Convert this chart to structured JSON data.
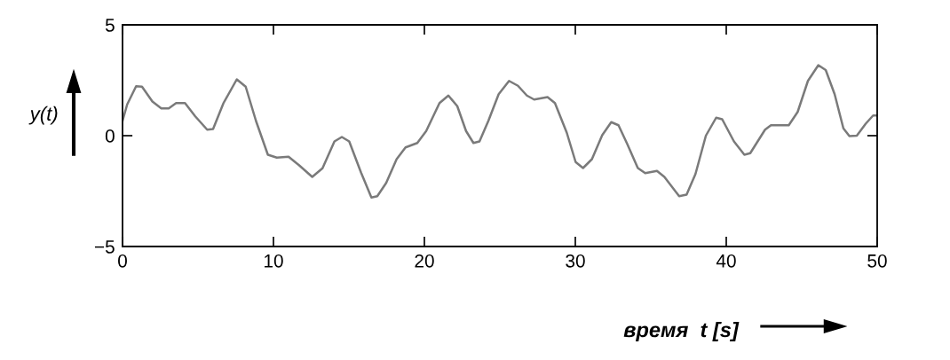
{
  "chart_data": {
    "type": "line",
    "xlabel": "время  t [s]",
    "ylabel": "y(t)",
    "xlim": [
      0,
      50
    ],
    "xticks": [
      0,
      10,
      20,
      30,
      40,
      50
    ],
    "ylim": [
      -5,
      5
    ],
    "yticks": [
      {
        "value": -5,
        "label": "−5"
      },
      0,
      5
    ],
    "marker": "none",
    "line_style": "solid",
    "series": [
      {
        "color": "#7a7a7a",
        "x": [
          0,
          0.31,
          0.9,
          1.29,
          1.98,
          2.57,
          3.06,
          3.55,
          4.14,
          4.82,
          5.61,
          6.0,
          6.69,
          7.57,
          8.16,
          8.84,
          9.63,
          10.22,
          11.0,
          11.69,
          12.57,
          13.25,
          14.04,
          14.53,
          15.02,
          15.8,
          16.49,
          16.88,
          17.47,
          18.16,
          18.75,
          19.53,
          20.12,
          21.0,
          21.59,
          22.18,
          22.76,
          23.25,
          23.65,
          24.24,
          24.92,
          25.61,
          26.2,
          26.79,
          27.27,
          28.16,
          28.65,
          29.43,
          30.02,
          30.51,
          31.1,
          31.78,
          32.38,
          32.86,
          33.45,
          34.14,
          34.63,
          35.41,
          35.9,
          36.88,
          37.37,
          37.96,
          38.65,
          39.33,
          39.73,
          40.51,
          41.2,
          41.59,
          42.57,
          42.96,
          44.14,
          44.73,
          45.41,
          46.1,
          46.59,
          47.18,
          47.76,
          48.16,
          48.65,
          49.24,
          49.73,
          50.0
        ],
        "values": [
          0.67,
          1.41,
          2.23,
          2.21,
          1.54,
          1.23,
          1.23,
          1.47,
          1.47,
          0.87,
          0.27,
          0.3,
          1.47,
          2.54,
          2.21,
          0.67,
          -0.86,
          -0.99,
          -0.95,
          -1.33,
          -1.86,
          -1.47,
          -0.26,
          -0.06,
          -0.26,
          -1.66,
          -2.79,
          -2.73,
          -2.13,
          -1.06,
          -0.53,
          -0.33,
          0.21,
          1.47,
          1.81,
          1.33,
          0.21,
          -0.33,
          -0.26,
          0.67,
          1.87,
          2.47,
          2.25,
          1.81,
          1.63,
          1.74,
          1.47,
          0.14,
          -1.19,
          -1.46,
          -1.06,
          0.02,
          0.61,
          0.47,
          -0.39,
          -1.46,
          -1.69,
          -1.59,
          -1.86,
          -2.73,
          -2.66,
          -1.73,
          0.0,
          0.81,
          0.74,
          -0.26,
          -0.86,
          -0.79,
          0.27,
          0.47,
          0.47,
          1.07,
          2.47,
          3.18,
          2.96,
          1.87,
          0.33,
          -0.02,
          0.0,
          0.54,
          0.91,
          0.91
        ]
      }
    ]
  }
}
